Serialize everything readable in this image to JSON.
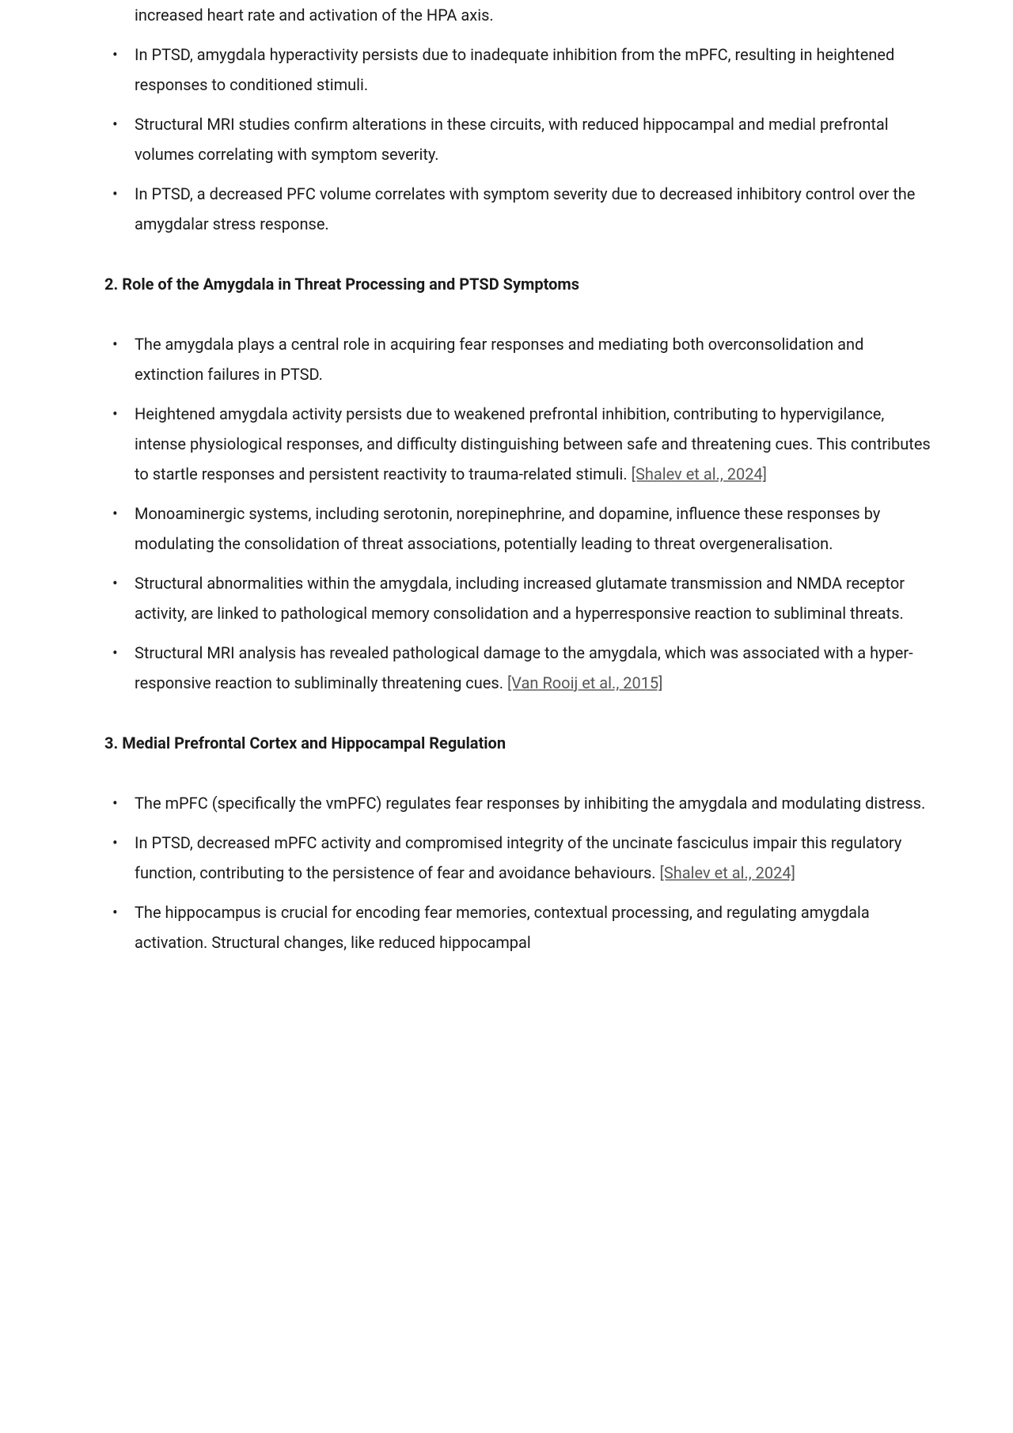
{
  "orphan_text": "increased heart rate and activation of the HPA axis.",
  "section1_bullets": [
    "In PTSD, amygdala hyperactivity persists due to inadequate inhibition from the mPFC, resulting in heightened responses to conditioned stimuli.",
    "Structural MRI studies confirm alterations in these circuits, with reduced hippocampal and medial prefrontal volumes correlating with symptom severity.",
    "In PTSD, a decreased PFC volume correlates with symptom severity due to decreased inhibitory control over the amygdalar stress response."
  ],
  "section2_heading": "2. Role of the Amygdala in Threat Processing and PTSD Symptoms",
  "section2_bullets": [
    {
      "text_before": "The amygdala plays a central role in acquiring fear responses and mediating both overconsolidation and extinction failures in PTSD.",
      "citation": "",
      "text_after": ""
    },
    {
      "text_before": "Heightened amygdala activity persists due to weakened prefrontal inhibition, contributing to hypervigilance, intense physiological responses, and difficulty distinguishing between safe and threatening cues. This contributes to startle responses and persistent reactivity to trauma-related stimuli. ",
      "citation": "[Shalev et al., 2024]",
      "text_after": ""
    },
    {
      "text_before": "Monoaminergic systems, including serotonin, norepinephrine, and dopamine, influence these responses by modulating the consolidation of threat associations, potentially leading to threat overgeneralisation.",
      "citation": "",
      "text_after": ""
    },
    {
      "text_before": "Structural abnormalities within the amygdala, including increased glutamate transmission and NMDA receptor activity, are linked to pathological memory consolidation and a hyperresponsive reaction to subliminal threats.",
      "citation": "",
      "text_after": ""
    },
    {
      "text_before": "Structural MRI analysis has revealed pathological damage to the amygdala, which was associated with a hyper-responsive reaction to subliminally threatening cues. ",
      "citation": "[Van Rooij et al., 2015]",
      "text_after": ""
    }
  ],
  "section3_heading": "3. Medial Prefrontal Cortex and Hippocampal Regulation",
  "section3_bullets": [
    {
      "text_before": "The mPFC (specifically the vmPFC) regulates fear responses by inhibiting the amygdala and modulating distress.",
      "citation": "",
      "text_after": ""
    },
    {
      "text_before": "In PTSD, decreased mPFC activity and compromised integrity of the uncinate fasciculus impair this regulatory function, contributing to the persistence of fear and avoidance behaviours. ",
      "citation": "[Shalev et al., 2024]",
      "text_after": ""
    },
    {
      "text_before": "The hippocampus is crucial for encoding fear memories, contextual processing, and regulating amygdala activation. Structural changes, like reduced hippocampal",
      "citation": "",
      "text_after": ""
    }
  ]
}
